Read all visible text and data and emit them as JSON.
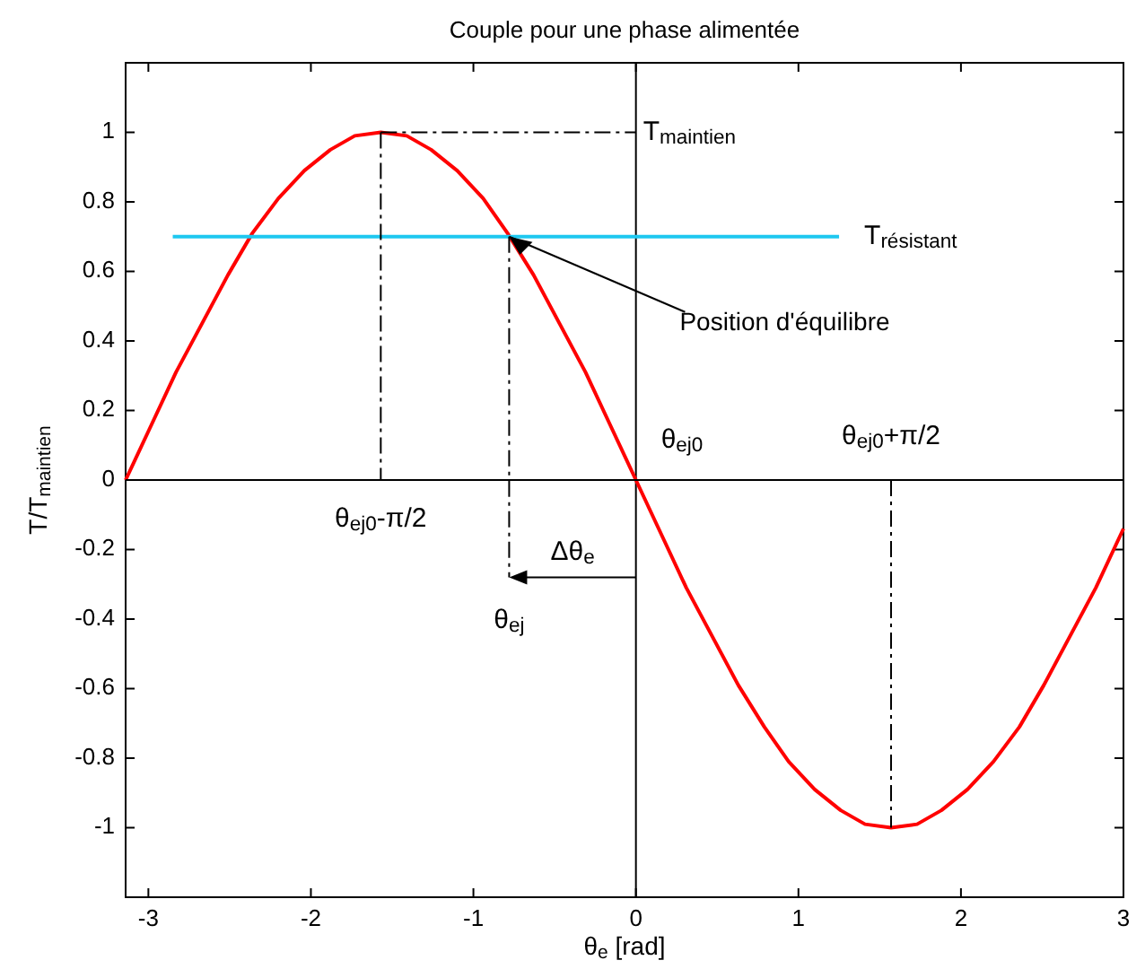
{
  "chart_data": {
    "type": "line",
    "title": "Couple pour une phase alimentée",
    "xlabel": "θ$_{e}$  [rad]",
    "ylabel": "T/T$_{maintien}$",
    "xlim": [
      -3.14,
      3.0
    ],
    "ylim": [
      -1.2,
      1.2
    ],
    "xticks": [
      -3,
      -2,
      -1,
      0,
      1,
      2,
      3
    ],
    "yticks": [
      -1,
      -0.8,
      -0.6,
      -0.4,
      -0.2,
      0,
      0.2,
      0.4,
      0.6,
      0.8,
      1
    ],
    "grid": false,
    "marker": "none",
    "series": [
      {
        "color": "#ff0000",
        "line_style": "solid",
        "x": [
          -3.14,
          -2.98,
          -2.83,
          -2.67,
          -2.51,
          -2.36,
          -2.2,
          -2.04,
          -1.88,
          -1.73,
          -1.57,
          -1.41,
          -1.26,
          -1.1,
          -0.94,
          -0.79,
          -0.63,
          -0.47,
          -0.31,
          -0.16,
          0,
          0.16,
          0.31,
          0.47,
          0.63,
          0.79,
          0.94,
          1.1,
          1.26,
          1.41,
          1.57,
          1.73,
          1.88,
          2.04,
          2.2,
          2.36,
          2.51,
          2.67,
          2.83,
          2.98,
          3.0
        ],
        "values": [
          0,
          0.16,
          0.31,
          0.45,
          0.59,
          0.71,
          0.81,
          0.89,
          0.95,
          0.99,
          1,
          0.99,
          0.95,
          0.89,
          0.81,
          0.71,
          0.59,
          0.45,
          0.31,
          0.16,
          0,
          -0.16,
          -0.31,
          -0.45,
          -0.59,
          -0.71,
          -0.81,
          -0.89,
          -0.95,
          -0.99,
          -1,
          -0.99,
          -0.95,
          -0.89,
          -0.81,
          -0.71,
          -0.59,
          -0.45,
          -0.31,
          -0.16,
          -0.14
        ]
      },
      {
        "color": "#1ec8f0",
        "line_style": "solid",
        "x": [
          -2.85,
          1.25
        ],
        "values": [
          0.7,
          0.7
        ]
      },
      {
        "color": "#000000",
        "line_style": "dashed",
        "x": [
          -1.57,
          0
        ],
        "values": [
          1,
          1
        ]
      },
      {
        "color": "#000000",
        "line_style": "dashed",
        "x": [
          -1.57,
          -1.57
        ],
        "values": [
          1,
          0
        ]
      },
      {
        "color": "#000000",
        "line_style": "dashed",
        "x": [
          -0.78,
          -0.78
        ],
        "values": [
          0.7,
          -0.28
        ]
      },
      {
        "color": "#000000",
        "line_style": "dashed",
        "x": [
          1.57,
          1.57
        ],
        "values": [
          0,
          -1
        ]
      },
      {
        "color": "#000000",
        "line_style": "solid",
        "x": [
          -3.14,
          3.0
        ],
        "values": [
          0,
          0
        ]
      }
    ],
    "ref_lines": [
      {
        "axis": "x",
        "value": 0,
        "color": "#000000"
      }
    ],
    "annotations": [
      {
        "text": "T$_{maintien}$",
        "x": 0,
        "y": 1
      },
      {
        "text": "T$_{résistant}$",
        "x": 1.25,
        "y": 0.7
      },
      {
        "text": "Position d'équilibre",
        "x": -0.78,
        "y": 0.7
      },
      {
        "text": "θ$_{ej0}$",
        "x": 0,
        "y": 0
      },
      {
        "text": "θ$_{ej0}$-π/2",
        "x": -1.57,
        "y": 0
      },
      {
        "text": "θ$_{ej0}$+π/2",
        "x": 1.57,
        "y": 0
      },
      {
        "text": "θ$_{ej}$",
        "x": -0.78,
        "y": -0.28
      },
      {
        "text": "Δθ$_{e}$",
        "x": -0.78,
        "y": -0.28
      }
    ]
  }
}
